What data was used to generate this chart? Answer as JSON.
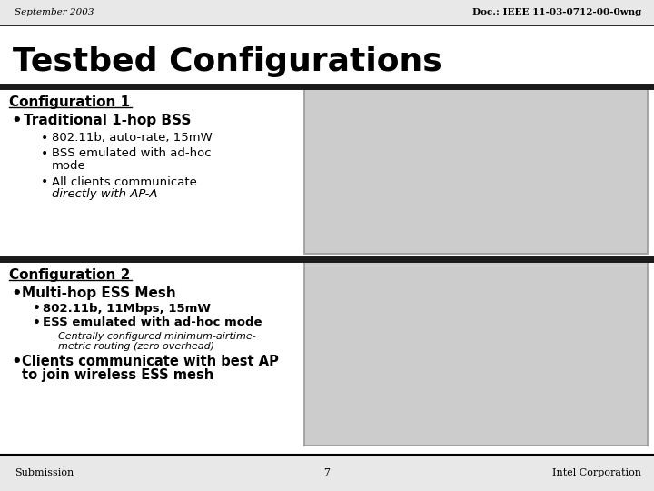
{
  "header_left": "September 2003",
  "header_right": "Doc.: IEEE 11-03-0712-00-0wng",
  "title": "Testbed Configurations",
  "config1_heading": "Configuration 1",
  "config1_bullet1": "Traditional 1-hop BSS",
  "config1_sub1": "802.11b, auto-rate, 15mW",
  "config1_sub2a": "BSS emulated with ad-hoc",
  "config1_sub2b": "mode",
  "config1_sub3a": "All clients communicate",
  "config1_sub3b": "directly with AP-A",
  "config2_heading": "Configuration 2",
  "config2_bullet1": "Multi-hop ESS Mesh",
  "config2_sub1": "802.11b, 11Mbps, 15mW",
  "config2_sub2": "ESS emulated with ad-hoc mode",
  "config2_dash1a": "Centrally configured minimum-airtime-",
  "config2_dash1b": "metric routing (zero overhead)",
  "config2_bullet2a": "Clients communicate with best AP",
  "config2_bullet2b": "to join wireless ESS mesh",
  "footer_left": "Submission",
  "footer_center": "7",
  "footer_right": "Intel Corporation",
  "slide_bg": "#ffffff",
  "header_bg": "#e8e8e8",
  "footer_bg": "#e8e8e8",
  "header_line_color": "#000000",
  "section_divider_color": "#1a1a1a",
  "image_bg": "#cccccc",
  "image_border": "#999999",
  "text_color": "#000000"
}
